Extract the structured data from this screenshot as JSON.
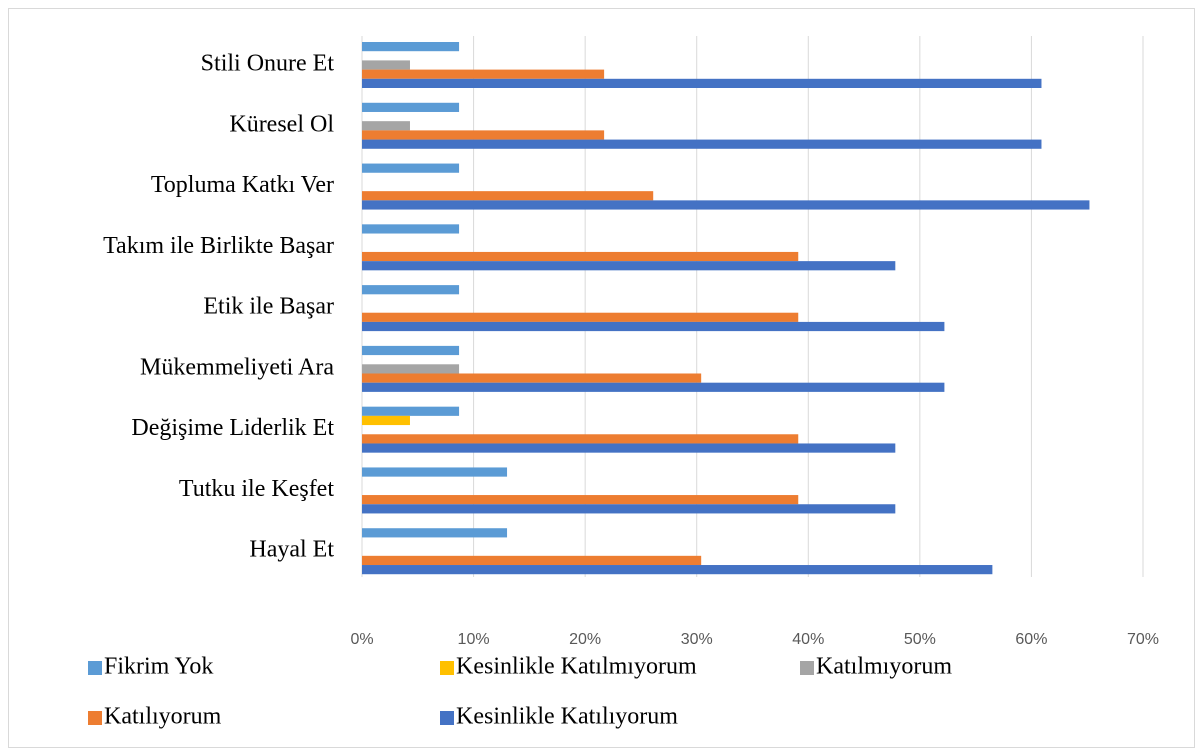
{
  "chart_data": {
    "type": "bar",
    "orientation": "horizontal",
    "categories": [
      "Stili Onure Et",
      "Küresel Ol",
      "Topluma Katkı Ver",
      "Takım ile Birlikte Başar",
      "Etik ile Başar",
      "Mükemmeliyeti Ara",
      "Değişime Liderlik Et",
      "Tutku ile Keşfet",
      "Hayal Et"
    ],
    "series": [
      {
        "name": "Fikrim Yok",
        "color": "#5b9bd5",
        "values": [
          8.7,
          8.7,
          8.7,
          8.7,
          8.7,
          8.7,
          8.7,
          13.0,
          13.0
        ]
      },
      {
        "name": "Kesinlikle Katılmıyorum",
        "color": "#ffc000",
        "values": [
          0,
          0,
          0,
          0,
          0,
          0,
          4.3,
          0,
          0
        ]
      },
      {
        "name": "Katılmıyorum",
        "color": "#a5a5a5",
        "values": [
          4.3,
          4.3,
          0,
          0,
          0,
          8.7,
          0,
          0,
          0
        ]
      },
      {
        "name": "Katılıyorum",
        "color": "#ed7d31",
        "values": [
          21.7,
          21.7,
          26.1,
          39.1,
          39.1,
          30.4,
          39.1,
          39.1,
          30.4
        ]
      },
      {
        "name": "Kesinlikle Katılıyorum",
        "color": "#4472c4",
        "values": [
          60.9,
          60.9,
          65.2,
          47.8,
          52.2,
          52.2,
          47.8,
          47.8,
          56.5
        ]
      }
    ],
    "xlim": [
      0,
      70
    ],
    "xticks": [
      {
        "value": 0,
        "label": "0%"
      },
      {
        "value": 10,
        "label": "10%"
      },
      {
        "value": 20,
        "label": "20%"
      },
      {
        "value": 30,
        "label": "30%"
      },
      {
        "value": 40,
        "label": "40%"
      },
      {
        "value": 50,
        "label": "50%"
      },
      {
        "value": 60,
        "label": "60%"
      },
      {
        "value": 70,
        "label": "70%"
      }
    ],
    "grid": true,
    "legend": "bottom"
  }
}
